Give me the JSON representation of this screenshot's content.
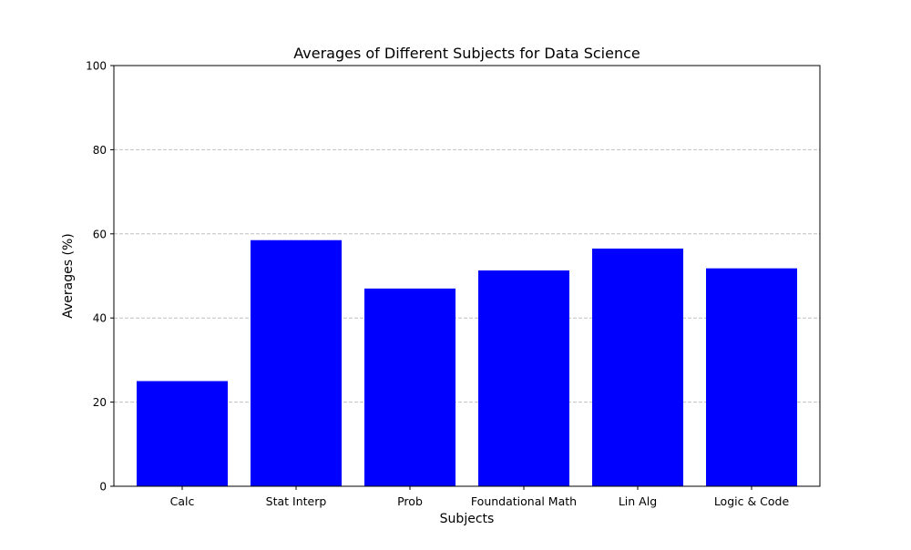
{
  "chart_data": {
    "type": "bar",
    "title": "Averages of Different Subjects for Data Science",
    "xlabel": "Subjects",
    "ylabel": "Averages (%)",
    "categories": [
      "Calc",
      "Stat Interp",
      "Prob",
      "Foundational Math",
      "Lin Alg",
      "Logic & Code"
    ],
    "values": [
      25.0,
      58.5,
      47.0,
      51.3,
      56.5,
      51.8
    ],
    "ylim": [
      0,
      100
    ],
    "yticks": [
      0,
      20,
      40,
      60,
      80,
      100
    ],
    "grid": "y-dashed",
    "legend": "none",
    "colors": {
      "bar": "#0000ff",
      "grid": "#c0c0c0",
      "axis": "#000000"
    }
  }
}
